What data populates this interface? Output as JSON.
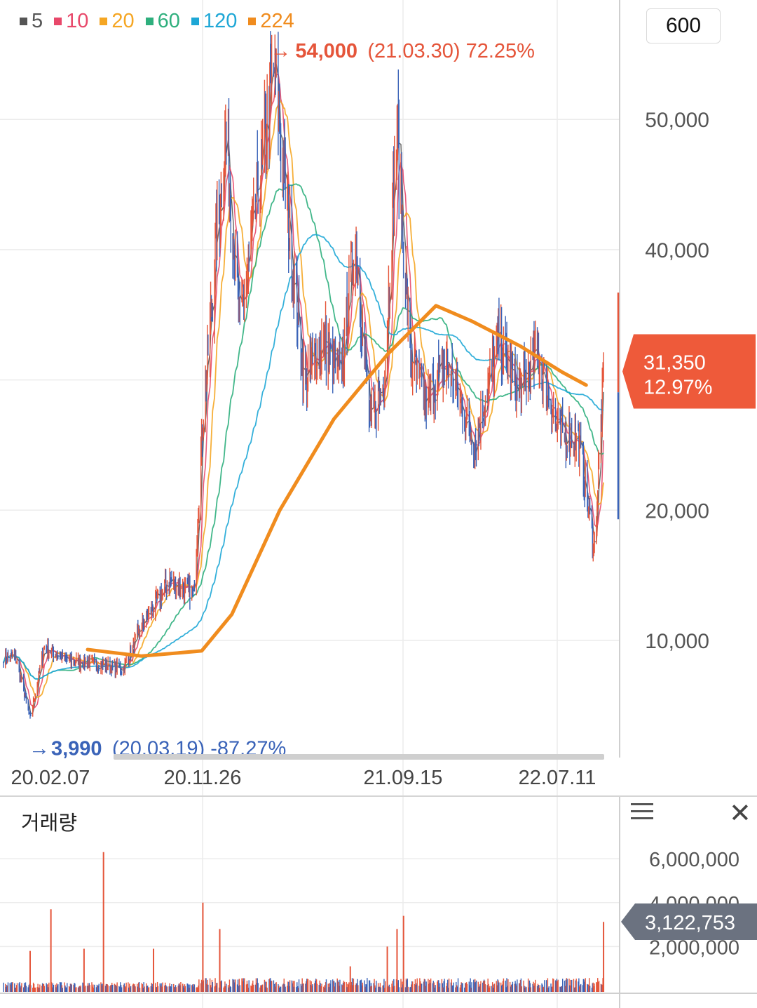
{
  "legend": [
    {
      "label": "5",
      "color": "#555555"
    },
    {
      "label": "10",
      "color": "#e8486a"
    },
    {
      "label": "20",
      "color": "#f5a623"
    },
    {
      "label": "60",
      "color": "#2eaf7d"
    },
    {
      "label": "120",
      "color": "#1ea7d6"
    },
    {
      "label": "224",
      "color": "#f08c1e"
    }
  ],
  "period_button": "600",
  "volume_panel": {
    "title": "거래량"
  },
  "colors": {
    "up": "#e5553a",
    "down": "#3a63b8",
    "ma5": "#555555",
    "ma10": "#e8486a",
    "ma20": "#f5a623",
    "ma60": "#2eaf7d",
    "ma120": "#1ea7d6",
    "ma224": "#f08c1e",
    "price_badge": "#ee5a3a",
    "volume_badge": "#6b7280",
    "grid": "#ececec"
  },
  "chart_data": [
    {
      "type": "candlestick",
      "title": "",
      "x_tick_labels": [
        "20.02.07",
        "20.11.26",
        "21.09.15",
        "22.07.11"
      ],
      "y_ticks": [
        10000,
        20000,
        30000,
        40000,
        50000
      ],
      "y_tick_labels": [
        "10,000",
        "20,000",
        "40,000",
        "50,000"
      ],
      "ylim": [
        3000,
        57000
      ],
      "grid": true,
      "price_key_points": [
        {
          "date": "2020-02-07",
          "price": 8800
        },
        {
          "date": "2020-02-26",
          "price": 8700
        },
        {
          "date": "2020-03-19",
          "price": 3990
        },
        {
          "date": "2020-04-10",
          "price": 9500
        },
        {
          "date": "2020-05-15",
          "price": 8500
        },
        {
          "date": "2020-07-01",
          "price": 8200
        },
        {
          "date": "2020-08-10",
          "price": 7800
        },
        {
          "date": "2020-09-10",
          "price": 11400
        },
        {
          "date": "2020-10-20",
          "price": 14600
        },
        {
          "date": "2020-11-26",
          "price": 13600
        },
        {
          "date": "2020-12-10",
          "price": 27000
        },
        {
          "date": "2020-12-30",
          "price": 40000
        },
        {
          "date": "2021-01-15",
          "price": 49000
        },
        {
          "date": "2021-02-05",
          "price": 34000
        },
        {
          "date": "2021-03-30",
          "price": 54000
        },
        {
          "date": "2021-04-15",
          "price": 45000
        },
        {
          "date": "2021-05-15",
          "price": 30000
        },
        {
          "date": "2021-06-15",
          "price": 33000
        },
        {
          "date": "2021-07-10",
          "price": 30000
        },
        {
          "date": "2021-08-01",
          "price": 41000
        },
        {
          "date": "2021-08-25",
          "price": 26500
        },
        {
          "date": "2021-09-15",
          "price": 30000
        },
        {
          "date": "2021-10-05",
          "price": 49500
        },
        {
          "date": "2021-10-25",
          "price": 32000
        },
        {
          "date": "2021-11-20",
          "price": 28000
        },
        {
          "date": "2021-12-20",
          "price": 31500
        },
        {
          "date": "2022-02-01",
          "price": 25000
        },
        {
          "date": "2022-03-10",
          "price": 33000
        },
        {
          "date": "2022-04-10",
          "price": 29000
        },
        {
          "date": "2022-05-10",
          "price": 32000
        },
        {
          "date": "2022-06-10",
          "price": 26000
        },
        {
          "date": "2022-07-11",
          "price": 25500
        },
        {
          "date": "2022-08-05",
          "price": 17000
        },
        {
          "date": "2022-08-20",
          "price": 31350
        }
      ],
      "moving_averages": [
        {
          "name": "224",
          "points": [
            [
              0.14,
              9300
            ],
            [
              0.23,
              8800
            ],
            [
              0.33,
              9200
            ],
            [
              0.38,
              12000
            ],
            [
              0.46,
              20000
            ],
            [
              0.55,
              27000
            ],
            [
              0.64,
              32000
            ],
            [
              0.72,
              35700
            ],
            [
              0.78,
              34500
            ],
            [
              0.86,
              32600
            ],
            [
              0.93,
              30600
            ],
            [
              0.97,
              29600
            ]
          ]
        }
      ],
      "annotations": [
        {
          "type": "max",
          "label": "54,000",
          "detail": "(21.03.30) 72.25%",
          "date": "2021-03-30",
          "price": 54000,
          "color": "#e5553a"
        },
        {
          "type": "min",
          "label": "3,990",
          "detail": "(20.03.19) -87.27%",
          "date": "2020-03-19",
          "price": 3990,
          "color": "#3a63b8"
        }
      ],
      "current_price": {
        "value": 31350,
        "label": "31,350",
        "change": "12.97%"
      }
    },
    {
      "type": "bar",
      "title": "거래량",
      "y_tick_labels": [
        "6,000,000",
        "4,000,000",
        "2,000,000"
      ],
      "ylim": [
        0,
        7000000
      ],
      "spikes": [
        {
          "date": "2020-03-19",
          "value": 1800000
        },
        {
          "date": "2020-04-20",
          "value": 3700000
        },
        {
          "date": "2020-06-10",
          "value": 1900000
        },
        {
          "date": "2020-07-10",
          "value": 6300000
        },
        {
          "date": "2020-09-25",
          "value": 1900000
        },
        {
          "date": "2020-12-10",
          "value": 4000000
        },
        {
          "date": "2021-01-05",
          "value": 2800000
        },
        {
          "date": "2021-07-25",
          "value": 1100000
        },
        {
          "date": "2021-09-20",
          "value": 2000000
        },
        {
          "date": "2021-10-05",
          "value": 2800000
        },
        {
          "date": "2021-10-15",
          "value": 3400000
        },
        {
          "date": "2022-08-19",
          "value": 3122753
        }
      ],
      "current_value": {
        "value": 3122753,
        "label": "3,122,753"
      }
    }
  ]
}
